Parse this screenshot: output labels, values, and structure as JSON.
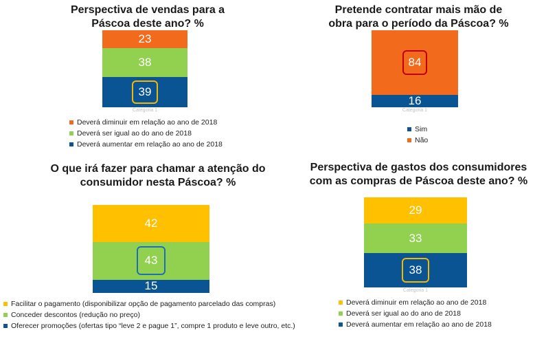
{
  "chart_data": [
    {
      "type": "bar",
      "stacked": true,
      "title": "Perspectiva de vendas para a Páscoa deste ano? %",
      "title_lines": [
        "Perspectiva de vendas para a",
        "Páscoa deste ano? %"
      ],
      "categories": [
        "Categoria 1"
      ],
      "series": [
        {
          "name": "Deverá diminuir em relação ao ano de 2018",
          "values": [
            23
          ],
          "color": "#F26B1D"
        },
        {
          "name": "Deverá ser igual ao do ano de 2018",
          "values": [
            38
          ],
          "color": "#92D050"
        },
        {
          "name": "Deverá aumentar em relação ao ano de 2018",
          "values": [
            39
          ],
          "color": "#0A5494"
        }
      ],
      "highlight": "Deverá aumentar em relação ao ano de 2018",
      "highlight_color": "#F5B800",
      "legend_position": "bottom"
    },
    {
      "type": "bar",
      "stacked": true,
      "title": "Pretende contratar mais mão de obra para o período da Páscoa? %",
      "title_lines": [
        "Pretende contratar mais mão de",
        "obra para o período da Páscoa? %"
      ],
      "categories": [
        "Categoria 1"
      ],
      "series": [
        {
          "name": "Sim",
          "values": [
            16
          ],
          "color": "#0A5494"
        },
        {
          "name": "Não",
          "values": [
            84
          ],
          "color": "#F26B1D"
        }
      ],
      "highlight": "Não",
      "highlight_color": "#C00000",
      "legend_position": "bottom"
    },
    {
      "type": "bar",
      "stacked": true,
      "title": "O que irá fazer para chamar a atenção do consumidor nesta Páscoa? %",
      "title_lines": [
        "O que irá fazer para chamar a atenção do",
        "consumidor nesta Páscoa?  %"
      ],
      "categories": [
        ""
      ],
      "series": [
        {
          "name": "Facilitar o pagamento (disponibilizar opção de pagamento parcelado das compras)",
          "values": [
            42
          ],
          "color": "#FFC000"
        },
        {
          "name": "Conceder descontos (redução no preço)",
          "values": [
            43
          ],
          "color": "#92D050"
        },
        {
          "name": "Oferecer promoções (ofertas tipo “leve 2 e pague 1”, compre 1 produto e leve outro, etc.)",
          "values": [
            15
          ],
          "color": "#0A5494"
        }
      ],
      "highlight": "Conceder descontos (redução no preço)",
      "highlight_color": "#1F6FB5",
      "legend_position": "bottom"
    },
    {
      "type": "bar",
      "stacked": true,
      "title": "Perspectiva de gastos dos consumidores com as compras de Páscoa deste ano? %",
      "title_lines": [
        "Perspectiva de gastos dos consumidores",
        "com as compras de Páscoa deste ano? %"
      ],
      "categories": [
        "Categoria 1"
      ],
      "series": [
        {
          "name": "Deverá diminuir em relação ao ano de 2018",
          "values": [
            29
          ],
          "color": "#FFC000"
        },
        {
          "name": "Deverá ser igual ao do ano de 2018",
          "values": [
            33
          ],
          "color": "#92D050"
        },
        {
          "name": "Deverá aumentar em relação ao ano de 2018",
          "values": [
            38
          ],
          "color": "#0A5494"
        }
      ],
      "highlight": "Deverá aumentar em relação ao ano de 2018",
      "highlight_color": "#F5B800",
      "legend_position": "bottom"
    }
  ]
}
